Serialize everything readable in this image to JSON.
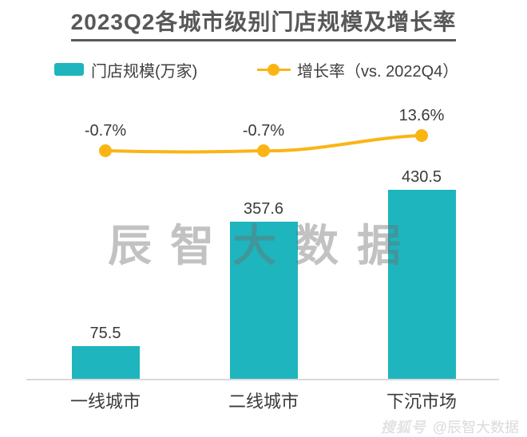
{
  "title": "2023Q2各城市级别门店规模及增长率",
  "legend": {
    "bar_label": "门店规模(万家)",
    "line_label": "增长率（vs. 2022Q4）"
  },
  "chart_data": {
    "type": "bar",
    "combo": "bar+line",
    "title": "2023Q2各城市级别门店规模及增长率",
    "categories": [
      "一线城市",
      "二线城市",
      "下沉市场"
    ],
    "series": [
      {
        "name": "门店规模(万家)",
        "type": "bar",
        "values": [
          75.5,
          357.6,
          430.5
        ],
        "labels": [
          "75.5",
          "357.6",
          "430.5"
        ]
      },
      {
        "name": "增长率（vs. 2022Q4）",
        "type": "line",
        "values": [
          -0.7,
          -0.7,
          13.6
        ],
        "labels": [
          "-0.7%",
          "-0.7%",
          "13.6%"
        ]
      }
    ],
    "xlabel": "",
    "ylabel": "",
    "ylim": [
      0,
      450
    ],
    "grid": false,
    "axes_visible": false,
    "legend_position": "top"
  },
  "watermark": {
    "center_text": "辰智大数据",
    "footer_logo": "搜狐号",
    "footer_credit": "@辰智大数据"
  },
  "colors": {
    "bar": "#1EB5BE",
    "line": "#FAB515",
    "title": "#58585A",
    "text": "#3A3A3A",
    "axis": "#D9D9D9",
    "watermark": "#C6C6C6"
  }
}
